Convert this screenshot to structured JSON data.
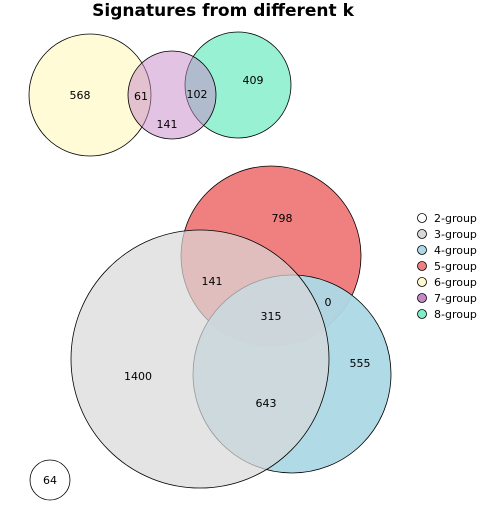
{
  "title": "Signatures from different k",
  "top_venn": {
    "sets": [
      {
        "group": "6-group",
        "color": "#FFFACD"
      },
      {
        "group": "7-group",
        "color": "#C888C8"
      },
      {
        "group": "8-group",
        "color": "#7EEEC8"
      }
    ],
    "regions": [
      {
        "sets": [
          "6-group"
        ],
        "count": "568"
      },
      {
        "sets": [
          "6-group",
          "7-group"
        ],
        "count": "61"
      },
      {
        "sets": [
          "7-group",
          "8-group"
        ],
        "count": "102"
      },
      {
        "sets": [
          "7-group"
        ],
        "count": "141"
      },
      {
        "sets": [
          "8-group"
        ],
        "count": "409"
      }
    ]
  },
  "main_venn": {
    "sets": [
      {
        "group": "5-group",
        "color": "#F08080"
      },
      {
        "group": "3-group",
        "color": "#D8D8D8"
      },
      {
        "group": "4-group",
        "color": "#ADD8E6"
      }
    ],
    "regions": [
      {
        "sets": [
          "5-group"
        ],
        "count": "798"
      },
      {
        "sets": [
          "5-group",
          "3-group"
        ],
        "count": "141"
      },
      {
        "sets": [
          "5-group",
          "4-group"
        ],
        "count": "0"
      },
      {
        "sets": [
          "5-group",
          "3-group",
          "4-group"
        ],
        "count": "315"
      },
      {
        "sets": [
          "3-group"
        ],
        "count": "1400"
      },
      {
        "sets": [
          "4-group"
        ],
        "count": "555"
      },
      {
        "sets": [
          "3-group",
          "4-group"
        ],
        "count": "643"
      }
    ]
  },
  "small_venn": {
    "sets": [
      {
        "group": "2-group",
        "color": "#FFFFFF"
      }
    ],
    "regions": [
      {
        "sets": [
          "2-group"
        ],
        "count": "64"
      }
    ]
  },
  "legend": {
    "items": [
      {
        "label": "2-group",
        "color": "#FFFFFF"
      },
      {
        "label": "3-group",
        "color": "#D8D8D8"
      },
      {
        "label": "4-group",
        "color": "#ADD8E6"
      },
      {
        "label": "5-group",
        "color": "#F08080"
      },
      {
        "label": "6-group",
        "color": "#FFFACD"
      },
      {
        "label": "7-group",
        "color": "#C888C8"
      },
      {
        "label": "8-group",
        "color": "#7EEEC8"
      }
    ]
  }
}
